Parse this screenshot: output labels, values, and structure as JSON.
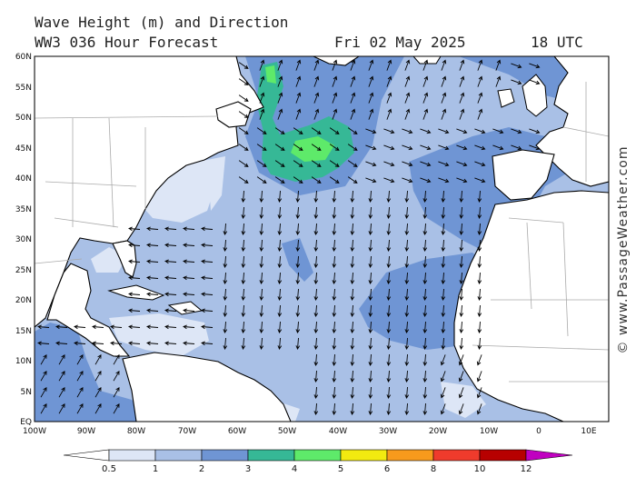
{
  "header": {
    "title": "Wave Height (m) and Direction",
    "model": "WW3 036 Hour Forecast",
    "date": "Fri 02 May 2025",
    "time": "18 UTC"
  },
  "copyright": "© www.PassageWeather.com",
  "map": {
    "lat_labels": [
      "60N",
      "55N",
      "50N",
      "45N",
      "40N",
      "35N",
      "30N",
      "25N",
      "20N",
      "15N",
      "10N",
      "5N",
      "EQ"
    ],
    "lon_labels": [
      "100W",
      "90W",
      "80W",
      "70W",
      "60W",
      "50W",
      "40W",
      "30W",
      "20W",
      "10W",
      "0",
      "10E"
    ],
    "lat_range": [
      0,
      60
    ],
    "lon_range": [
      -100,
      10
    ],
    "colors": {
      "ocean_low": "#dde6f6",
      "band_0_5_1": "#dde6f6",
      "band_1_2": "#a9c0e6",
      "band_2_3": "#6f95d4",
      "band_3_4": "#36b896",
      "band_4_5": "#5eea6a",
      "land": "#ffffff",
      "coast": "#000000",
      "borders": "#aaaaaa",
      "arrows": "#000000"
    }
  },
  "colorbar": {
    "ticks": [
      "0.5",
      "1",
      "2",
      "3",
      "4",
      "5",
      "6",
      "8",
      "10",
      "12"
    ],
    "colors": [
      "#dde6f6",
      "#a9c0e6",
      "#6f95d4",
      "#36b896",
      "#5eea6a",
      "#f2ea10",
      "#f79a1c",
      "#ef3b2c",
      "#b70000",
      "#c000c0"
    ]
  }
}
